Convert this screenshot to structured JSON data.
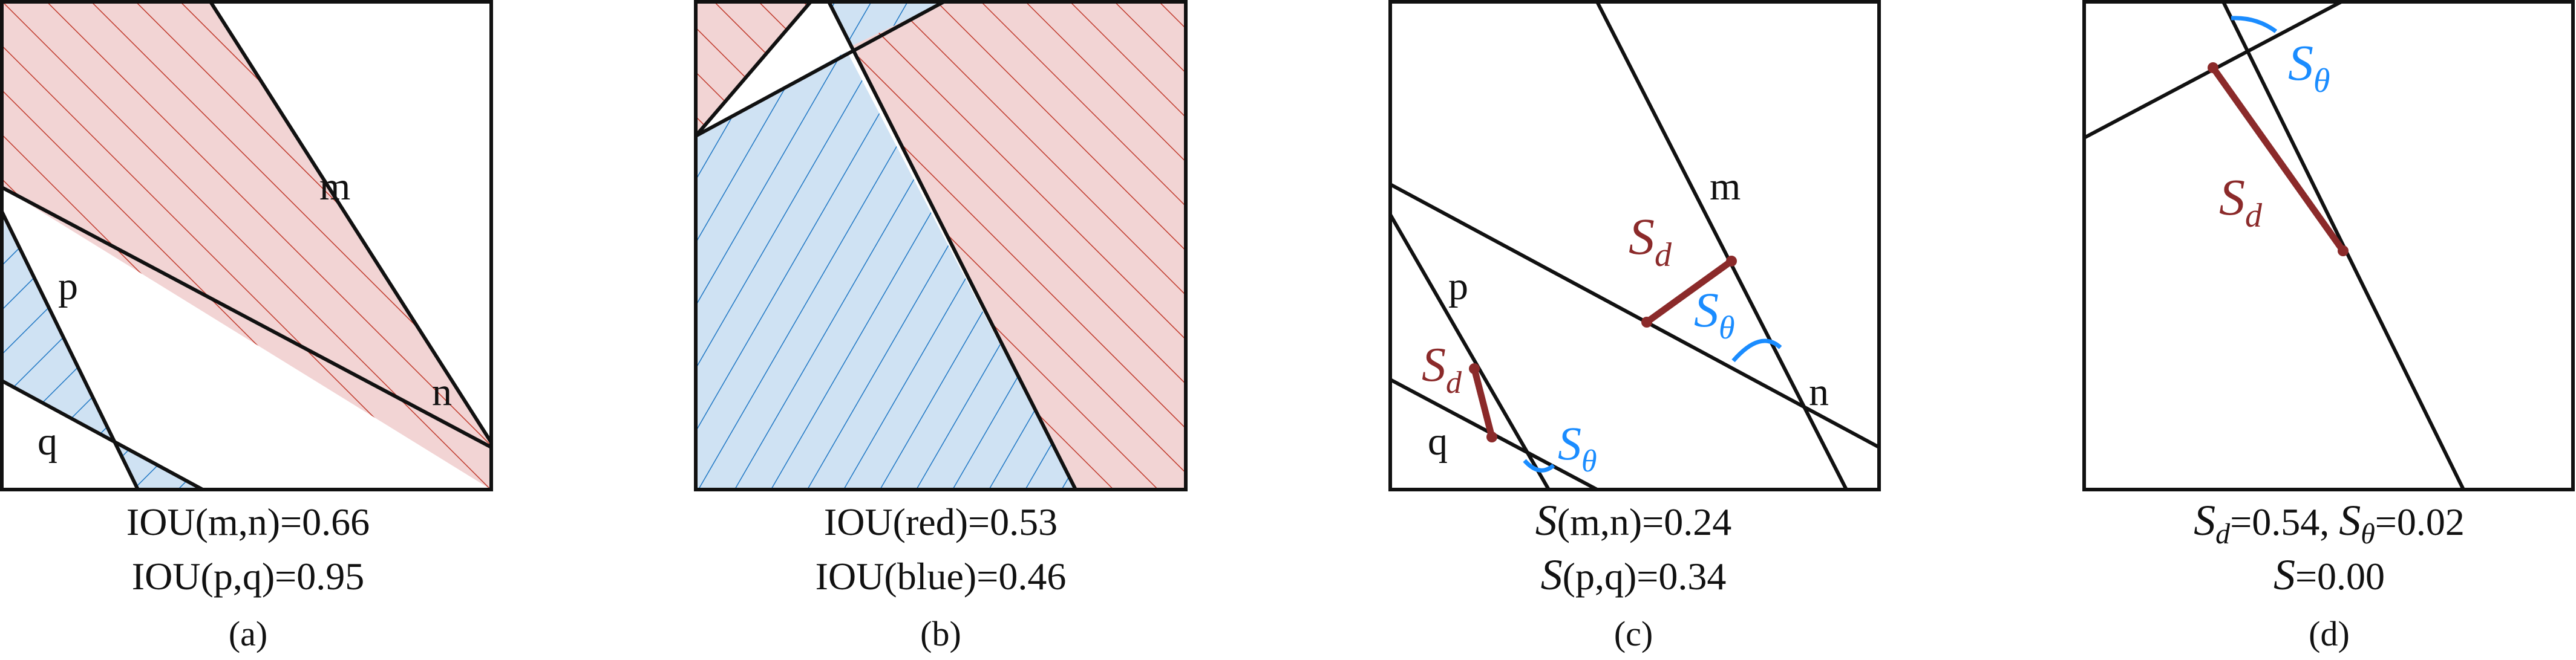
{
  "colors": {
    "red_fill": "#f2d4d4",
    "red_hatch": "#c0392b",
    "blue_fill": "#cfe2f3",
    "blue_hatch": "#1f77c4",
    "dist_segment": "#8b2a2a",
    "angle_arc": "#1a8cff",
    "line": "#111111"
  },
  "panels": [
    {
      "id": "a",
      "line_labels": [
        "m",
        "n",
        "p",
        "q"
      ],
      "captions": [
        "IOU(m,n)=0.66",
        "IOU(p,q)=0.95"
      ],
      "sublabel": "(a)"
    },
    {
      "id": "b",
      "line_labels": [],
      "captions": [
        "IOU(red)=0.53",
        "IOU(blue)=0.46"
      ],
      "sublabel": "(b)"
    },
    {
      "id": "c",
      "line_labels": [
        "m",
        "n",
        "p",
        "q"
      ],
      "symbols": {
        "S_main": "S",
        "S_sub": "d",
        "theta_main": "S",
        "theta_sub": "θ"
      },
      "captions": [
        {
          "sym": "S",
          "text": "(m,n)=0.24"
        },
        {
          "sym": "S",
          "text": "(p,q)=0.34"
        }
      ],
      "sublabel": "(c)"
    },
    {
      "id": "d",
      "line_labels": [],
      "symbols": {
        "S_main": "S",
        "S_sub": "d",
        "theta_main": "S",
        "theta_sub": "θ"
      },
      "captions": [
        {
          "sym1": "S",
          "sub1": "d",
          "text1": "=0.54, ",
          "sym2": "S",
          "sub2": "θ",
          "text2": "=0.02"
        },
        {
          "sym": "S",
          "text": "=0.00"
        }
      ],
      "sublabel": "(d)"
    }
  ]
}
